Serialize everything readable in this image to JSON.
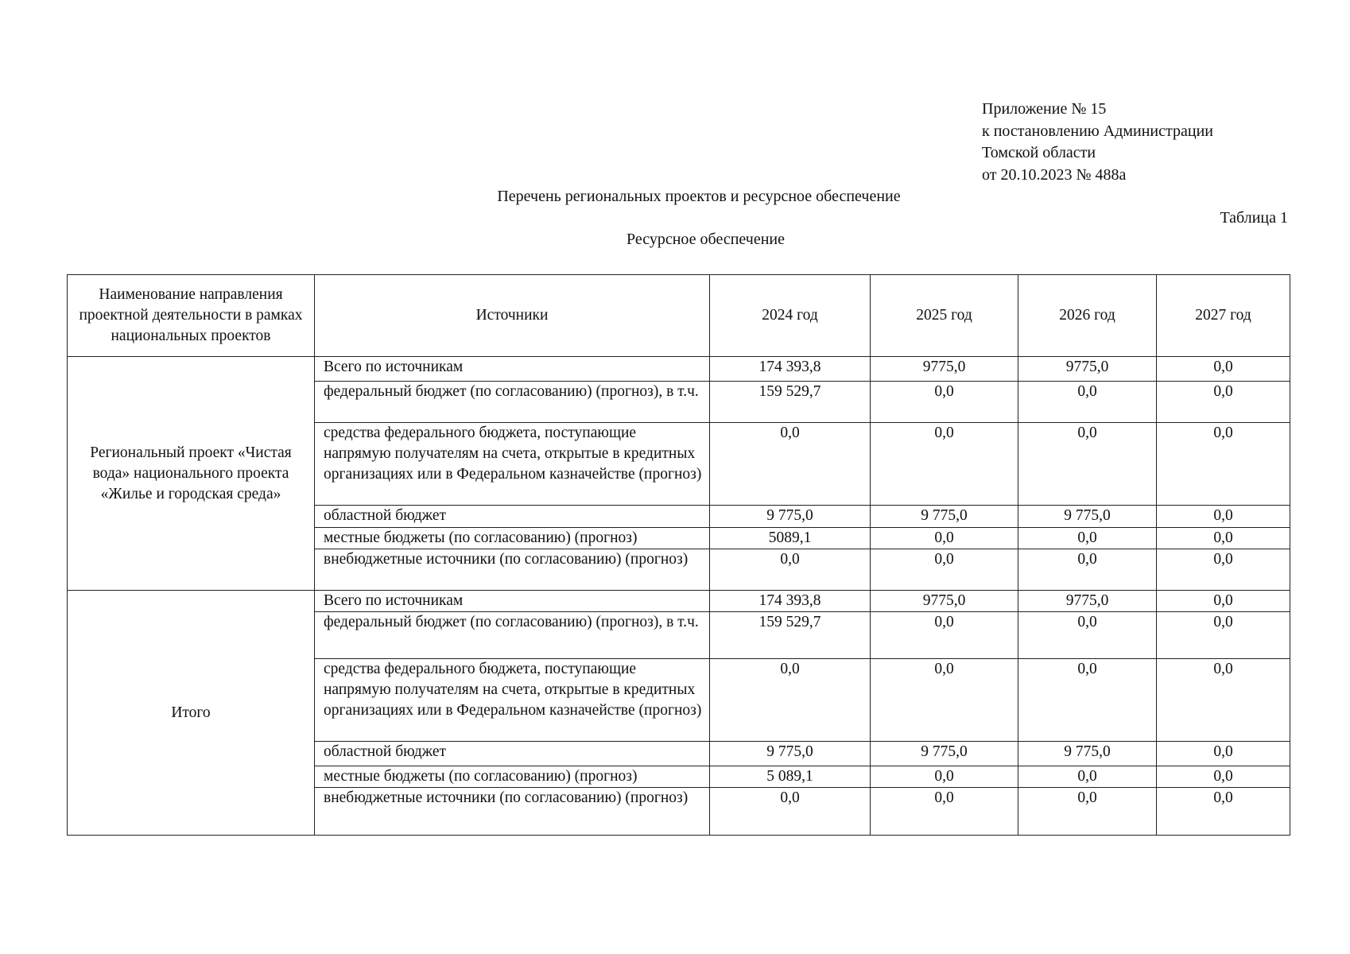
{
  "appendix": [
    "Приложение № 15",
    "к постановлению Администрации",
    "Томской области",
    "от 20.10.2023 № 488а"
  ],
  "title": "Перечень региональных проектов и ресурсное обеспечение",
  "table_number": "Таблица 1",
  "subtitle": "Ресурсное обеспечение",
  "table": {
    "headers": [
      "Наименование направления проектной деятельности в рамках национальных проектов",
      "Источники",
      "2024 год",
      "2025 год",
      "2026 год",
      "2027 год"
    ],
    "groups": [
      {
        "name": "Региональный проект «Чистая вода» национального проекта «Жилье и городская среда»",
        "rows": [
          {
            "source": "Всего по источникам",
            "values": [
              "174 393,8",
              "9775,0",
              "9775,0",
              "0,0"
            ]
          },
          {
            "source": "федеральный бюджет (по согласованию) (прогноз), в т.ч.",
            "values": [
              "159 529,7",
              "0,0",
              "0,0",
              "0,0"
            ]
          },
          {
            "source": "средства федерального бюджета, поступающие напрямую получателям на счета, открытые в кредитных организациях или в Федеральном казначействе (прогноз)",
            "values": [
              "0,0",
              "0,0",
              "0,0",
              "0,0"
            ]
          },
          {
            "source": "областной бюджет",
            "values": [
              "9 775,0",
              "9 775,0",
              "9 775,0",
              "0,0"
            ]
          },
          {
            "source": "местные бюджеты (по согласованию) (прогноз)",
            "values": [
              "5089,1",
              "0,0",
              "0,0",
              "0,0"
            ]
          },
          {
            "source": "внебюджетные источники (по согласованию) (прогноз)",
            "values": [
              "0,0",
              "0,0",
              "0,0",
              "0,0"
            ]
          }
        ]
      },
      {
        "name": "Итого",
        "rows": [
          {
            "source": "Всего по источникам",
            "values": [
              "174 393,8",
              "9775,0",
              "9775,0",
              "0,0"
            ]
          },
          {
            "source": "федеральный бюджет (по согласованию) (прогноз), в т.ч.",
            "values": [
              "159 529,7",
              "0,0",
              "0,0",
              "0,0"
            ]
          },
          {
            "source": "средства федерального бюджета, поступающие напрямую получателям на счета, открытые в кредитных организациях или в Федеральном казначействе (прогноз)",
            "values": [
              "0,0",
              "0,0",
              "0,0",
              "0,0"
            ]
          },
          {
            "source": "областной бюджет",
            "values": [
              "9 775,0",
              "9 775,0",
              "9 775,0",
              "0,0"
            ]
          },
          {
            "source": "местные бюджеты (по согласованию) (прогноз)",
            "values": [
              "5 089,1",
              "0,0",
              "0,0",
              "0,0"
            ]
          },
          {
            "source": "внебюджетные источники (по согласованию) (прогноз)",
            "values": [
              "0,0",
              "0,0",
              "0,0",
              "0,0"
            ]
          }
        ]
      }
    ]
  }
}
